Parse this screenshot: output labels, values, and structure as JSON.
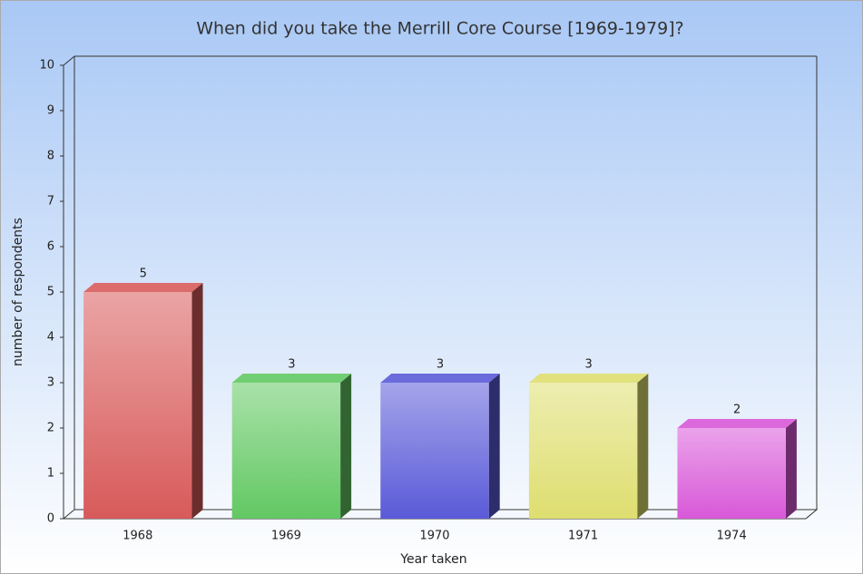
{
  "chart_data": {
    "type": "bar3d",
    "title": "When did you take the Merrill Core Course [1969-1979]?",
    "x_label": "Year taken",
    "y_label": "number of respondents",
    "categories": [
      "1968",
      "1969",
      "1970",
      "1971",
      "1974"
    ],
    "values": [
      5,
      3,
      3,
      3,
      2
    ],
    "colors": [
      "#d85a5a",
      "#62c862",
      "#5a5ad8",
      "#dede70",
      "#d858d8"
    ],
    "ylim": [
      0,
      10
    ],
    "yticks": [
      0,
      1,
      2,
      3,
      4,
      5,
      6,
      7,
      8,
      9,
      10
    ],
    "show_value_labels": true
  }
}
